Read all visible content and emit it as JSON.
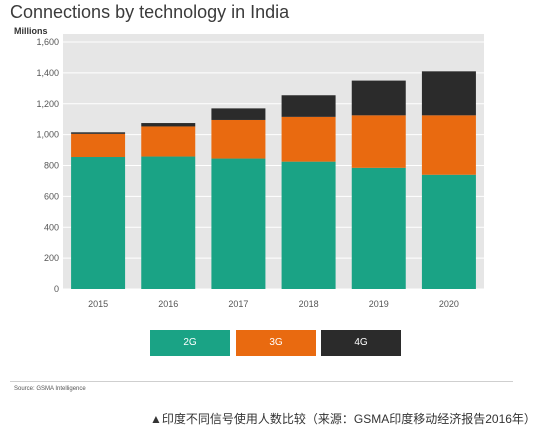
{
  "chart_data": {
    "type": "bar",
    "stacked": true,
    "title": "Connections by technology in India",
    "ylabel": "Millions",
    "xlabel": "",
    "categories": [
      "2015",
      "2016",
      "2017",
      "2018",
      "2019",
      "2020"
    ],
    "series": [
      {
        "name": "2G",
        "color": "#1aa385",
        "values": [
          855,
          858,
          845,
          825,
          785,
          740
        ]
      },
      {
        "name": "3G",
        "color": "#e96a10",
        "values": [
          150,
          195,
          250,
          290,
          340,
          385
        ]
      },
      {
        "name": "4G",
        "color": "#2b2b2b",
        "values": [
          10,
          22,
          75,
          140,
          225,
          285
        ]
      }
    ],
    "ylim": [
      0,
      1600
    ],
    "yticks": [
      "0",
      "200",
      "400",
      "600",
      "800",
      "1,000",
      "1,200",
      "1,400",
      "1,600"
    ],
    "grid": true,
    "legend_position": "bottom",
    "background_color": "#e6e6e6",
    "source": "Source: GSMA Intelligence"
  },
  "caption": "▲印度不同信号使用人数比较（来源：GSMA印度移动经济报告2016年）"
}
